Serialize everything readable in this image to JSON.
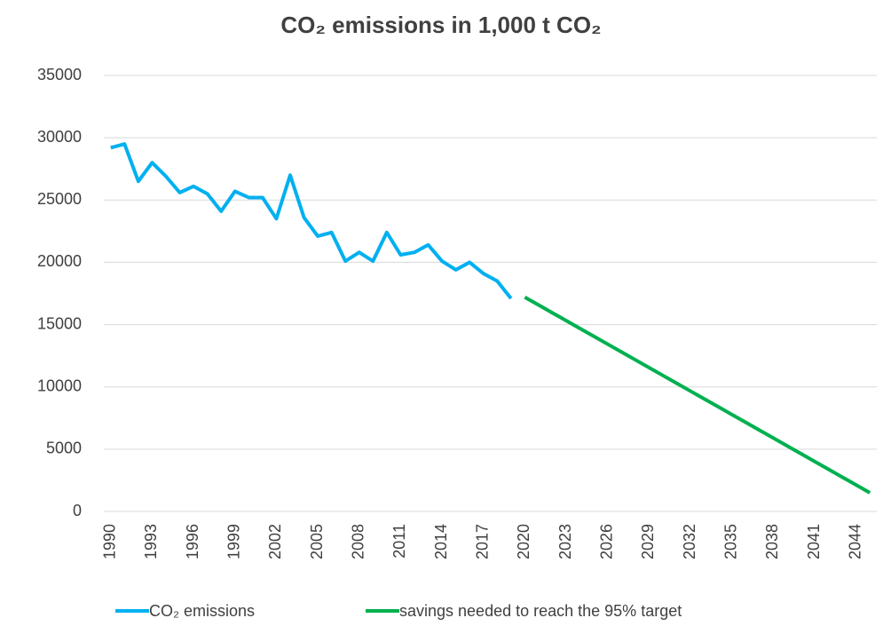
{
  "chart_data": {
    "type": "line",
    "title": "CO₂ emissions in 1,000 t CO₂",
    "categories": [
      "1990",
      null,
      null,
      "1993",
      null,
      null,
      "1996",
      null,
      null,
      "1999",
      null,
      null,
      "2002",
      null,
      null,
      "2005",
      null,
      null,
      "2008",
      null,
      null,
      "2011",
      null,
      null,
      "2014",
      null,
      null,
      "2017",
      null,
      null,
      "2020",
      null,
      null,
      "2023",
      null,
      null,
      "2026",
      null,
      null,
      "2029",
      null,
      null,
      "2032",
      null,
      null,
      "2035",
      null,
      null,
      "2038",
      null,
      null,
      "2041",
      null,
      null,
      "2044",
      null
    ],
    "series": [
      {
        "name": "CO₂ emissions",
        "color": "#00b0f0",
        "values": [
          29200,
          29500,
          26500,
          28000,
          26900,
          25600,
          26100,
          25500,
          24100,
          25700,
          25200,
          25200,
          23500,
          27000,
          23600,
          22100,
          22400,
          20100,
          20800,
          20100,
          22400,
          20600,
          20800,
          21400,
          20100,
          19400,
          20000,
          19100,
          18500,
          17100,
          null,
          null,
          null,
          null,
          null,
          null,
          null,
          null,
          null,
          null,
          null,
          null,
          null,
          null,
          null,
          null,
          null,
          null,
          null,
          null,
          null,
          null,
          null,
          null,
          null,
          null
        ]
      },
      {
        "name": "savings needed to reach the 95% target",
        "color": "#00b050",
        "values": [
          null,
          null,
          null,
          null,
          null,
          null,
          null,
          null,
          null,
          null,
          null,
          null,
          null,
          null,
          null,
          null,
          null,
          null,
          null,
          null,
          null,
          null,
          null,
          null,
          null,
          null,
          null,
          null,
          null,
          null,
          17200,
          16572,
          15944,
          15316,
          14688,
          14060,
          13432,
          12804,
          12176,
          11548,
          10920,
          10292,
          9664,
          9036,
          8408,
          7780,
          7152,
          6524,
          5896,
          5268,
          4640,
          4012,
          3384,
          2756,
          2128,
          1500
        ]
      }
    ],
    "ylim": [
      0,
      35000
    ],
    "yticks": [
      0,
      5000,
      10000,
      15000,
      20000,
      25000,
      30000,
      35000
    ],
    "grid": true,
    "legend": "bottom"
  }
}
